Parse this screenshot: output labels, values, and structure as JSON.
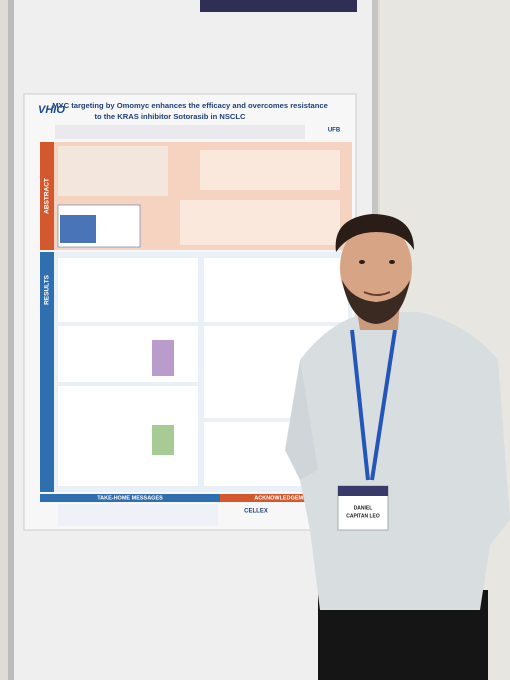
{
  "poster": {
    "logo": "VHIO",
    "title": [
      "MYC targeting by Omomyc enhances the efficacy and overcomes resistance",
      "to the KRAS inhibitor Sotorasib in NSCLC"
    ],
    "sections": [
      "ABSTRACT",
      "RESULTS"
    ],
    "take_home": "TAKE-HOME MESSAGES",
    "acknowledgements": "ACKNOWLEDGEMENTS",
    "affiliation": "UFB",
    "sponsor": "CELLEX"
  },
  "badge": {
    "first": "DANIEL",
    "last": "CAPITAN LEO"
  }
}
